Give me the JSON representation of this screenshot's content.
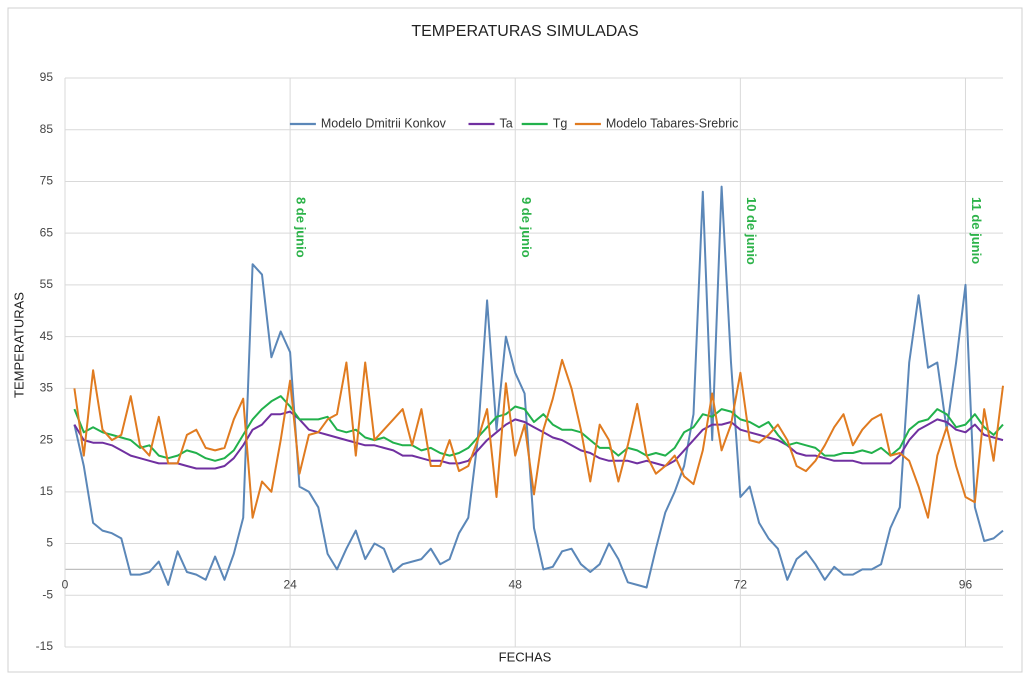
{
  "chart_data": {
    "type": "line",
    "title": "TEMPERATURAS SIMULADAS",
    "x_label": "FECHAS",
    "y_label": "TEMPERATURAS",
    "x": [
      1,
      2,
      3,
      4,
      5,
      6,
      7,
      8,
      9,
      10,
      11,
      12,
      13,
      14,
      15,
      16,
      17,
      18,
      19,
      20,
      21,
      22,
      23,
      24,
      25,
      26,
      27,
      28,
      29,
      30,
      31,
      32,
      33,
      34,
      35,
      36,
      37,
      38,
      39,
      40,
      41,
      42,
      43,
      44,
      45,
      46,
      47,
      48,
      49,
      50,
      51,
      52,
      53,
      54,
      55,
      56,
      57,
      58,
      59,
      60,
      61,
      62,
      63,
      64,
      65,
      66,
      67,
      68,
      69,
      70,
      71,
      72,
      73,
      74,
      75,
      76,
      77,
      78,
      79,
      80,
      81,
      82,
      83,
      84,
      85,
      86,
      87,
      88,
      89,
      90,
      91,
      92,
      93,
      94,
      95,
      96,
      97,
      98,
      99,
      100
    ],
    "series": [
      {
        "name": "Modelo Dmitrii Konkov",
        "color": "#5b87b8",
        "values": [
          28,
          20,
          9,
          7.5,
          7,
          6,
          -1,
          -1,
          -0.5,
          1.5,
          -3,
          3.5,
          -0.5,
          -1,
          -2,
          2.5,
          -2,
          3,
          10,
          59,
          57,
          41,
          46,
          42,
          16,
          15,
          12,
          3,
          0,
          4,
          7.5,
          2,
          5,
          4,
          -0.5,
          1,
          1.5,
          2,
          4,
          1,
          2,
          7,
          10,
          25,
          52,
          27,
          45,
          38,
          34,
          8,
          0,
          0.5,
          3.5,
          4,
          1,
          -0.5,
          1,
          5,
          2,
          -2.5,
          -3,
          -3.5,
          4,
          11,
          15,
          20,
          30,
          73,
          25,
          74,
          40,
          14,
          16,
          9,
          6,
          4,
          -2,
          2,
          3.5,
          1,
          -2,
          0.5,
          -1,
          -1,
          0,
          0,
          1,
          8,
          12,
          40,
          53,
          39,
          40,
          27,
          40,
          55,
          12,
          5.5,
          6,
          7.5
        ]
      },
      {
        "name": "Ta",
        "color": "#7030a0",
        "values": [
          28,
          25,
          24.5,
          24.5,
          24,
          23,
          22,
          21.5,
          21,
          20.5,
          20.5,
          20.5,
          20,
          19.5,
          19.5,
          19.5,
          20,
          21.5,
          24,
          27,
          28,
          30,
          30,
          30.5,
          29,
          27,
          26.5,
          26,
          25.5,
          25,
          24.5,
          24,
          24,
          23.5,
          23,
          22,
          22,
          21.5,
          21,
          21,
          20.5,
          20.5,
          21,
          23,
          25,
          26.5,
          28,
          29,
          28.5,
          27.5,
          26.5,
          25.5,
          25,
          24,
          23,
          22.5,
          21.5,
          21,
          21,
          21,
          20.5,
          21,
          20.5,
          20,
          21,
          23,
          25,
          27,
          28,
          28,
          28.5,
          27,
          26.5,
          26,
          25.5,
          25,
          24,
          22.5,
          22,
          22,
          21.5,
          21,
          21,
          21,
          20.5,
          20.5,
          20.5,
          20.5,
          22,
          25,
          27,
          28,
          29,
          28.5,
          27,
          26.5,
          28,
          26,
          25.5,
          25
        ]
      },
      {
        "name": "Tg",
        "color": "#22b14c",
        "values": [
          31,
          26.5,
          27.5,
          26.5,
          26,
          25.5,
          25,
          23.5,
          24,
          22,
          21.5,
          22,
          23,
          22.5,
          21.5,
          21,
          21.5,
          23,
          26,
          29,
          31,
          32.5,
          33.5,
          31.5,
          29,
          29,
          29,
          29.5,
          27,
          26.5,
          27,
          25.5,
          25,
          25.5,
          24.5,
          24,
          24,
          23,
          23.5,
          22.5,
          22,
          22.5,
          23.5,
          25.5,
          27.5,
          29.5,
          30,
          31.5,
          31,
          28.5,
          30,
          28,
          27,
          27,
          26.5,
          25,
          23.5,
          23.5,
          22,
          23.5,
          23,
          22,
          22.5,
          22,
          23.5,
          26.5,
          27.5,
          30,
          29.5,
          31,
          30.5,
          29,
          28.5,
          27.5,
          28.5,
          26,
          24,
          24.5,
          24,
          23.5,
          22,
          22,
          22.5,
          22.5,
          23,
          22.5,
          23.5,
          22,
          23.5,
          27,
          28.5,
          29,
          31,
          30,
          27.5,
          28,
          30,
          27.5,
          26,
          28
        ]
      },
      {
        "name": "Modelo Tabares-Srebric",
        "color": "#e07b20",
        "values": [
          35,
          22,
          38.5,
          27,
          25,
          26,
          33.5,
          24,
          22,
          29.5,
          20.5,
          20.5,
          26,
          27,
          23.5,
          23,
          23.5,
          29,
          33,
          10,
          17,
          15,
          25,
          36.5,
          18.5,
          26,
          26.5,
          29,
          30,
          40,
          22,
          40,
          25,
          27,
          29,
          31,
          24,
          31,
          20,
          20,
          25,
          19,
          20,
          25,
          31,
          14,
          36,
          22,
          28,
          14.5,
          27,
          33,
          40.5,
          35,
          27,
          17,
          28,
          25,
          17,
          24,
          32,
          22,
          18.5,
          20,
          22,
          18,
          16.5,
          23,
          34,
          23,
          28,
          38,
          25,
          24.5,
          26,
          28,
          25,
          20,
          19,
          21,
          24,
          27.5,
          30,
          24,
          27,
          29,
          30,
          22,
          22.5,
          21,
          16,
          10,
          22,
          27.5,
          20,
          14,
          13,
          31,
          21,
          35.5
        ]
      }
    ],
    "annotations": [
      "8 de junio",
      "9 de junio",
      "10 de junio",
      "11 de junio"
    ],
    "xlim": [
      0,
      100
    ],
    "xticks": [
      0,
      24,
      48,
      72,
      96
    ],
    "ylim": [
      -15,
      95
    ],
    "yticks": [
      -15,
      -5,
      5,
      15,
      25,
      35,
      45,
      55,
      65,
      75,
      85,
      95
    ],
    "grid": true,
    "legend": "top"
  }
}
